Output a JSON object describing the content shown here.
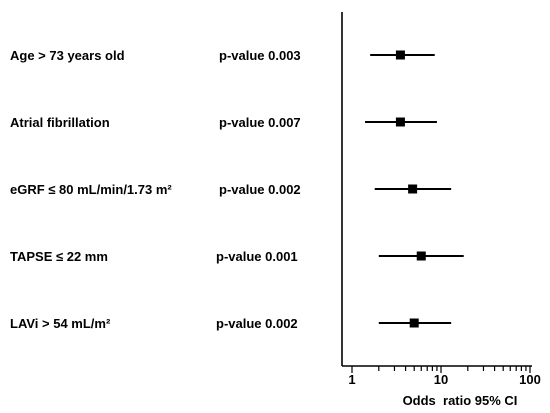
{
  "chart_data": {
    "type": "forest",
    "xscale": "log",
    "xlim": [
      1,
      100
    ],
    "xticks": [
      1,
      10,
      100
    ],
    "xlabel": "Odds  ratio 95% CI",
    "rows": [
      {
        "label": "Age > 73 years old",
        "pvalue": "p-value 0.003",
        "or": 3.5,
        "ci": [
          1.6,
          8.5
        ]
      },
      {
        "label": "Atrial fibrillation",
        "pvalue": "p-value 0.007",
        "or": 3.5,
        "ci": [
          1.4,
          9.0
        ]
      },
      {
        "label": "eGRF ≤ 80 mL/min/1.73 m²",
        "pvalue": "p-value 0.002",
        "or": 4.8,
        "ci": [
          1.8,
          13.0
        ]
      },
      {
        "label": "TAPSE ≤ 22 mm",
        "pvalue": "p-value 0.001",
        "or": 6.0,
        "ci": [
          2.0,
          18.0
        ]
      },
      {
        "label": "LAVi > 54 mL/m²",
        "pvalue": "p-value 0.002",
        "or": 5.0,
        "ci": [
          2.0,
          13.0
        ]
      }
    ]
  }
}
